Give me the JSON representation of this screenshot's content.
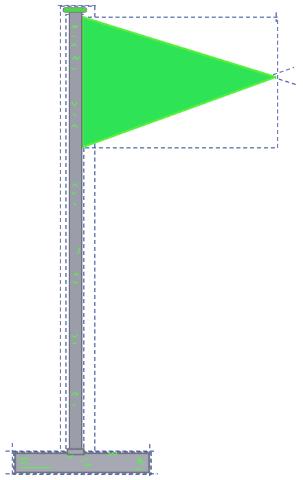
{
  "scene": {
    "subject": "flag-on-pole",
    "colors": {
      "background": "#ffffff",
      "flag_fill": "#2ee456",
      "flag_edge": "#55ef3a",
      "pole_fill": "#9b9ea8",
      "pole_edge": "#6d7180",
      "base_fill": "#a6a9b2",
      "base_edge": "#6f7383",
      "pole_cap": "#4fd94a",
      "scribble": "#58f24a",
      "guide_dash": "#4b5f9e"
    }
  }
}
